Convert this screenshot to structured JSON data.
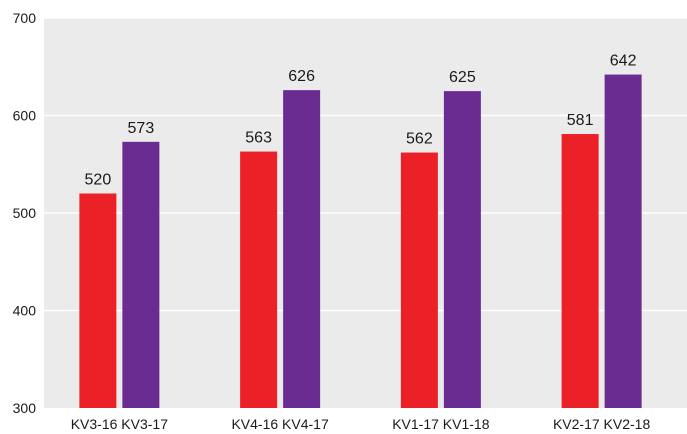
{
  "chart_data": {
    "type": "bar",
    "categories": [
      "KV3-16 KV3-17",
      "KV4-16 KV4-17",
      "KV1-17 KV1-18",
      "KV2-17 KV2-18"
    ],
    "series": [
      {
        "values": [
          520,
          563,
          562,
          581
        ]
      },
      {
        "values": [
          573,
          626,
          625,
          642
        ]
      }
    ],
    "ylim": [
      300,
      700
    ],
    "yticks": [
      300,
      400,
      500,
      600,
      700
    ],
    "grid": true,
    "legend": "none",
    "title": "",
    "xlabel": "",
    "ylabel": ""
  },
  "colors": {
    "plot_background": "#ebebeb",
    "gridline": "#ffffff",
    "series": [
      "#ec2027",
      "#6a2c91"
    ]
  }
}
